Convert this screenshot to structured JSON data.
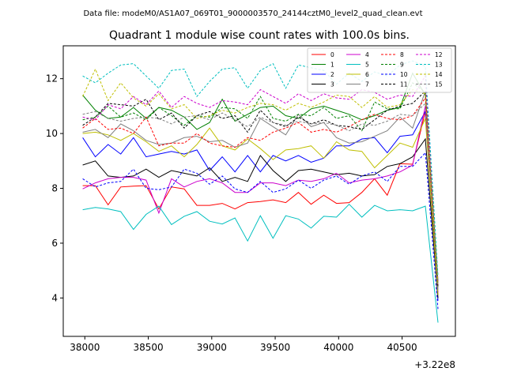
{
  "chart_data": {
    "type": "line",
    "suptitle": "Data file: modeM0/AS1A07_069T01_9000003570_24144cztM0_level2_quad_clean.evt",
    "title": "Quadrant 1 module wise count rates with 100.0s bins.",
    "xlabel": "",
    "ylabel": "",
    "x_offset_label": "+3.22e8",
    "xlim": [
      37830,
      40920
    ],
    "ylim": [
      2.6,
      13.2
    ],
    "x_ticks": [
      38000,
      38500,
      39000,
      39500,
      40000,
      40500
    ],
    "x_tick_labels": [
      "38000",
      "38500",
      "39000",
      "39500",
      "40000",
      "40500"
    ],
    "y_ticks": [
      4,
      6,
      8,
      10,
      12
    ],
    "y_tick_labels": [
      "4",
      "6",
      "8",
      "10",
      "12"
    ],
    "legend_position": "top-right",
    "x": [
      37983,
      38083,
      38183,
      38283,
      38383,
      38483,
      38583,
      38683,
      38783,
      38883,
      38983,
      39083,
      39183,
      39283,
      39383,
      39483,
      39583,
      39683,
      39783,
      39883,
      39983,
      40083,
      40183,
      40283,
      40383,
      40483,
      40583,
      40683,
      40783
    ],
    "series": [
      {
        "name": "0",
        "color": "#ff0000",
        "dash": false,
        "values": [
          8.1,
          8.1,
          7.4,
          8.05,
          8.08,
          8.1,
          7.25,
          8.05,
          7.98,
          7.38,
          7.38,
          7.45,
          7.25,
          7.48,
          7.52,
          7.58,
          7.48,
          7.85,
          7.42,
          7.75,
          7.45,
          7.48,
          7.85,
          8.35,
          7.75,
          8.9,
          8.88,
          10.8,
          4.1
        ]
      },
      {
        "name": "1",
        "color": "#008000",
        "dash": false,
        "values": [
          11.4,
          10.85,
          10.55,
          10.6,
          10.95,
          10.55,
          10.95,
          10.85,
          10.6,
          10.15,
          10.4,
          11.25,
          10.45,
          10.7,
          10.95,
          11.0,
          10.65,
          10.55,
          10.9,
          11.0,
          10.85,
          10.7,
          10.5,
          10.65,
          10.85,
          10.95,
          12.2,
          11.4,
          4.6
        ]
      },
      {
        "name": "2",
        "color": "#0000ff",
        "dash": false,
        "values": [
          9.85,
          9.15,
          9.6,
          9.25,
          9.85,
          9.15,
          9.25,
          9.35,
          9.25,
          9.4,
          8.65,
          9.15,
          8.6,
          9.2,
          8.6,
          9.2,
          9.0,
          9.2,
          8.95,
          9.1,
          9.55,
          9.55,
          9.8,
          9.85,
          9.3,
          9.9,
          9.95,
          10.8,
          3.9
        ]
      },
      {
        "name": "3",
        "color": "#000000",
        "dash": false,
        "values": [
          8.85,
          9.0,
          8.45,
          8.4,
          8.45,
          8.7,
          8.4,
          8.65,
          8.55,
          8.45,
          8.75,
          8.25,
          8.4,
          8.25,
          9.2,
          8.65,
          8.25,
          8.65,
          8.7,
          8.6,
          8.5,
          8.55,
          8.45,
          8.5,
          8.8,
          8.9,
          9.15,
          9.8,
          4.0
        ]
      },
      {
        "name": "4",
        "color": "#cc00cc",
        "dash": false,
        "values": [
          7.98,
          8.2,
          8.35,
          8.4,
          8.4,
          8.3,
          7.1,
          8.35,
          8.05,
          8.25,
          8.35,
          8.2,
          7.85,
          7.85,
          8.2,
          8.2,
          8.1,
          8.3,
          8.25,
          8.35,
          8.55,
          8.2,
          8.3,
          8.35,
          8.45,
          8.6,
          8.85,
          11.0,
          4.2
        ]
      },
      {
        "name": "5",
        "color": "#00bfbf",
        "dash": false,
        "values": [
          7.22,
          7.3,
          7.25,
          7.15,
          6.5,
          7.05,
          7.35,
          6.68,
          6.98,
          7.15,
          6.8,
          6.7,
          6.92,
          6.08,
          7.0,
          6.18,
          7.0,
          6.88,
          6.55,
          6.98,
          6.95,
          7.42,
          6.95,
          7.38,
          7.18,
          7.22,
          7.18,
          7.35,
          3.1
        ]
      },
      {
        "name": "6",
        "color": "#bfbf00",
        "dash": false,
        "values": [
          10.0,
          10.05,
          9.95,
          9.75,
          10.0,
          9.7,
          9.35,
          9.55,
          9.15,
          9.6,
          10.2,
          9.55,
          9.4,
          9.8,
          9.45,
          9.05,
          9.4,
          9.45,
          9.55,
          9.1,
          9.7,
          9.4,
          9.35,
          8.75,
          9.2,
          9.65,
          9.5,
          10.55,
          4.1
        ]
      },
      {
        "name": "7",
        "color": "#808080",
        "dash": false,
        "values": [
          10.05,
          10.15,
          9.85,
          10.35,
          10.1,
          9.75,
          9.6,
          9.65,
          9.85,
          9.9,
          9.7,
          9.75,
          9.5,
          9.65,
          10.55,
          10.25,
          9.95,
          10.7,
          10.25,
          10.4,
          9.85,
          9.65,
          9.7,
          9.9,
          10.1,
          10.6,
          10.2,
          11.55,
          4.3
        ]
      },
      {
        "name": "8",
        "color": "#ff0000",
        "dash": true,
        "values": [
          10.2,
          10.55,
          10.15,
          10.2,
          10.0,
          10.6,
          9.55,
          9.65,
          9.65,
          10.0,
          9.65,
          9.55,
          9.5,
          9.85,
          9.75,
          10.05,
          10.2,
          10.4,
          10.05,
          10.15,
          10.05,
          10.25,
          10.5,
          10.7,
          10.55,
          10.5,
          10.65,
          11.3,
          4.4
        ]
      },
      {
        "name": "9",
        "color": "#008000",
        "dash": true,
        "values": [
          10.5,
          10.6,
          11.0,
          10.6,
          10.75,
          10.5,
          10.95,
          10.65,
          10.3,
          10.65,
          10.6,
          10.95,
          10.9,
          10.55,
          11.35,
          10.55,
          10.45,
          10.7,
          10.65,
          10.95,
          10.55,
          10.65,
          10.1,
          11.15,
          10.9,
          10.9,
          11.85,
          11.5,
          4.5
        ]
      },
      {
        "name": "10",
        "color": "#0000ff",
        "dash": true,
        "values": [
          8.35,
          8.05,
          8.2,
          8.25,
          8.7,
          8.0,
          7.95,
          8.05,
          8.7,
          8.55,
          8.15,
          8.45,
          7.98,
          7.85,
          8.25,
          7.85,
          7.98,
          8.3,
          8.0,
          8.3,
          8.45,
          8.15,
          8.45,
          8.6,
          8.25,
          8.8,
          8.8,
          9.3,
          3.6
        ]
      },
      {
        "name": "11",
        "color": "#000000",
        "dash": true,
        "values": [
          10.3,
          10.6,
          11.1,
          11.05,
          11.0,
          11.25,
          10.5,
          10.75,
          10.2,
          10.65,
          10.8,
          10.55,
          10.65,
          10.05,
          10.85,
          10.4,
          10.25,
          10.6,
          10.35,
          10.5,
          10.3,
          10.25,
          10.15,
          10.5,
          10.85,
          11.0,
          11.1,
          11.55,
          4.4
        ]
      },
      {
        "name": "12",
        "color": "#cc00cc",
        "dash": true,
        "values": [
          10.6,
          10.5,
          11.05,
          10.9,
          11.35,
          11.05,
          11.55,
          10.95,
          11.35,
          11.1,
          10.95,
          11.2,
          11.15,
          11.05,
          11.6,
          11.35,
          11.1,
          11.45,
          11.2,
          11.45,
          11.3,
          11.25,
          11.6,
          11.5,
          11.25,
          11.4,
          11.35,
          12.1,
          4.6
        ]
      },
      {
        "name": "13",
        "color": "#00bfbf",
        "dash": true,
        "values": [
          12.1,
          11.85,
          12.2,
          12.5,
          12.55,
          12.1,
          11.65,
          12.3,
          12.35,
          11.35,
          11.9,
          12.35,
          12.4,
          11.65,
          12.3,
          12.55,
          11.65,
          12.5,
          12.4,
          12.3,
          11.8,
          12.2,
          11.9,
          12.25,
          12.1,
          12.5,
          12.65,
          12.45,
          4.8
        ]
      },
      {
        "name": "14",
        "color": "#bfbf00",
        "dash": true,
        "values": [
          11.35,
          12.35,
          11.2,
          11.85,
          11.3,
          11.0,
          11.45,
          10.9,
          11.05,
          10.55,
          10.65,
          10.85,
          10.75,
          10.95,
          11.1,
          11.05,
          10.85,
          11.1,
          10.95,
          11.15,
          11.4,
          11.35,
          10.95,
          11.35,
          10.95,
          11.05,
          11.6,
          11.45,
          4.5
        ]
      },
      {
        "name": "15",
        "color": "#808080",
        "dash": true,
        "values": [
          10.7,
          10.8,
          10.55,
          10.45,
          10.55,
          10.6,
          10.55,
          10.35,
          10.6,
          10.65,
          10.5,
          10.75,
          10.5,
          10.25,
          10.6,
          10.4,
          10.3,
          10.45,
          10.35,
          10.4,
          10.3,
          10.1,
          10.35,
          10.3,
          10.45,
          10.7,
          10.65,
          11.1,
          4.3
        ]
      }
    ]
  }
}
